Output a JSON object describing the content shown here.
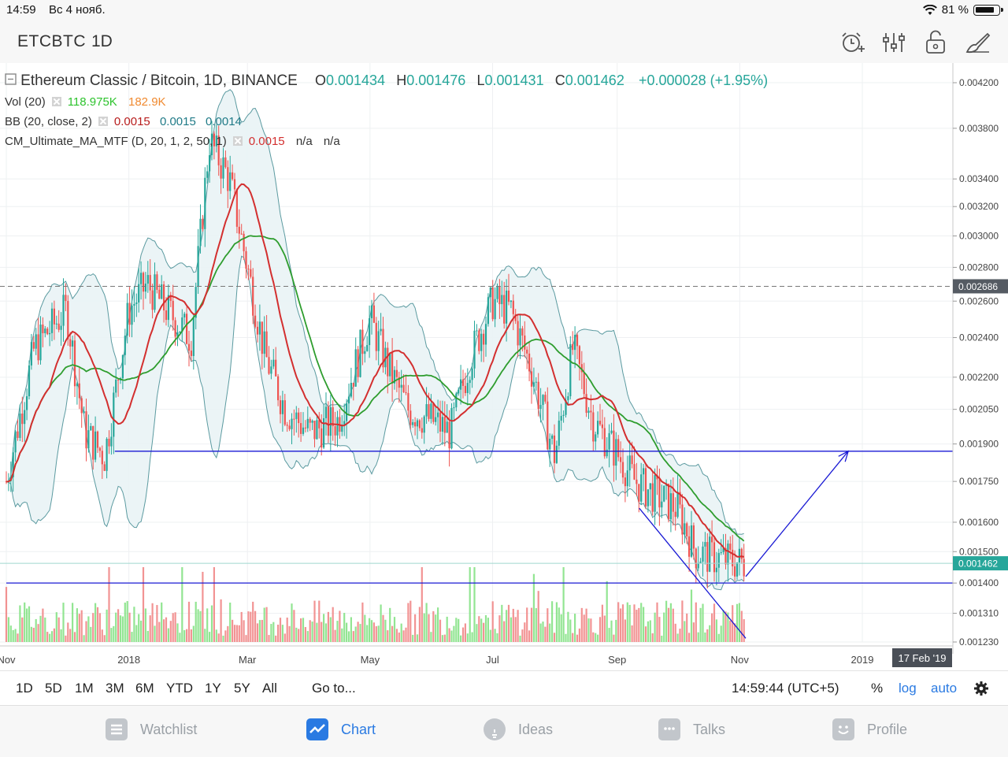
{
  "status": {
    "time": "14:59",
    "date": "Вс 4 нояб.",
    "battery": "81 %",
    "battery_level": 0.81
  },
  "toolbar": {
    "symbol": "ETCBTC",
    "interval": "1D",
    "icons": [
      "alarm-add-icon",
      "indicators-icon",
      "unlock-icon",
      "drawing-tools-icon"
    ]
  },
  "legend": {
    "title": "Ethereum Classic / Bitcoin, 1D, BINANCE",
    "o_label": "O",
    "o": "0.001434",
    "h_label": "H",
    "h": "0.001476",
    "l_label": "L",
    "l": "0.001431",
    "c_label": "C",
    "c": "0.001462",
    "change": "+0.000028 (+1.95%)",
    "vol_name": "Vol (20)",
    "vol_value": "118.975K",
    "vol_ma": "182.9K",
    "bb_name": "BB (20, close, 2)",
    "bb_basis": "0.0015",
    "bb_upper": "0.0015",
    "bb_lower": "0.0014",
    "cm_name": "CM_Ultimate_MA_MTF (D, 20, 1, 2, 50, 1)",
    "cm_v1": "0.0015",
    "cm_v2": "n/a",
    "cm_v3": "n/a"
  },
  "chart_data": {
    "type": "candlestick",
    "scale": "log",
    "price_axis": [
      "0.004200",
      "0.003800",
      "0.003400",
      "0.003200",
      "0.003000",
      "0.002800",
      "0.002600",
      "0.002400",
      "0.002200",
      "0.002050",
      "0.001900",
      "0.001750",
      "0.001600",
      "0.001500",
      "0.001400",
      "0.001310",
      "0.001230"
    ],
    "time_axis": [
      "Nov",
      "2018",
      "Mar",
      "May",
      "Jul",
      "Sep",
      "Nov",
      "2019"
    ],
    "crosshair_date": "17 Feb '19",
    "last_price": "0.001462",
    "reference_price": "0.002686",
    "ylim": [
      0.0012,
      0.0044
    ],
    "close_series": {
      "dates": [
        "2017-11-01",
        "2017-11-15",
        "2017-12-01",
        "2017-12-10",
        "2017-12-20",
        "2018-01-01",
        "2018-01-10",
        "2018-01-20",
        "2018-02-01",
        "2018-02-10",
        "2018-02-20",
        "2018-03-01",
        "2018-03-10",
        "2018-03-20",
        "2018-04-01",
        "2018-04-15",
        "2018-05-01",
        "2018-05-10",
        "2018-05-20",
        "2018-06-01",
        "2018-06-10",
        "2018-06-20",
        "2018-07-01",
        "2018-07-10",
        "2018-07-20",
        "2018-08-01",
        "2018-08-10",
        "2018-08-20",
        "2018-09-01",
        "2018-09-10",
        "2018-09-20",
        "2018-10-01",
        "2018-10-10",
        "2018-10-20",
        "2018-11-04"
      ],
      "close": [
        0.00175,
        0.00235,
        0.00255,
        0.00195,
        0.00185,
        0.00255,
        0.0027,
        0.00255,
        0.0024,
        0.0037,
        0.0034,
        0.0028,
        0.0023,
        0.00205,
        0.00195,
        0.002,
        0.0025,
        0.00225,
        0.00205,
        0.002,
        0.00195,
        0.0023,
        0.0026,
        0.00255,
        0.00225,
        0.00185,
        0.00235,
        0.002,
        0.00186,
        0.00175,
        0.0017,
        0.00165,
        0.0015,
        0.00148,
        0.001462
      ]
    },
    "drawings": [
      {
        "type": "horizontal_line",
        "from": "2017-12-25",
        "to": "2019-02-17",
        "price": 0.00187
      },
      {
        "type": "horizontal_line",
        "from": "2017-11-01",
        "to": "2019-02-28",
        "price": 0.0014
      },
      {
        "type": "trend_line",
        "from": [
          "2018-09-12",
          0.00165
        ],
        "to": [
          "2018-11-04",
          0.00124
        ]
      },
      {
        "type": "trend_line",
        "from": [
          "2018-11-04",
          0.00142
        ],
        "to": [
          "2018-12-25",
          0.00187
        ]
      }
    ]
  },
  "periods": {
    "items": [
      "1D",
      "5D",
      "1M",
      "3M",
      "6M",
      "YTD",
      "1Y",
      "5Y",
      "All"
    ],
    "goto": "Go to...",
    "clock": "14:59:44 (UTC+5)",
    "percent": "%",
    "log": "log",
    "auto": "auto"
  },
  "tabs": [
    {
      "label": "Watchlist",
      "icon": "list-icon"
    },
    {
      "label": "Chart",
      "icon": "chart-icon",
      "active": true
    },
    {
      "label": "Ideas",
      "icon": "lightbulb-icon"
    },
    {
      "label": "Talks",
      "icon": "chat-icon"
    },
    {
      "label": "Profile",
      "icon": "smiley-icon"
    }
  ],
  "colors": {
    "up": "#26a69a",
    "down": "#ef5350",
    "accent": "#2a7ae2",
    "line": "#1a1ad4",
    "ma_red": "#d32f2f",
    "ma_green": "#2e9d2e",
    "band": "#e9f3f5"
  }
}
